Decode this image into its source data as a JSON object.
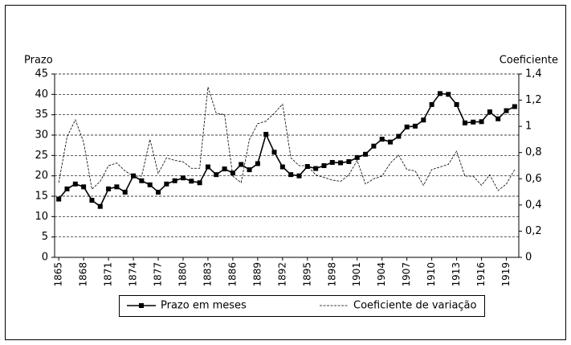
{
  "chart_data": {
    "type": "line",
    "y_label": "Prazo",
    "y2_label": "Coeficiente",
    "x": [
      1865,
      1866,
      1867,
      1868,
      1869,
      1870,
      1871,
      1872,
      1873,
      1874,
      1875,
      1876,
      1877,
      1878,
      1879,
      1880,
      1881,
      1882,
      1883,
      1884,
      1885,
      1886,
      1887,
      1888,
      1889,
      1890,
      1891,
      1892,
      1893,
      1894,
      1895,
      1896,
      1897,
      1898,
      1899,
      1900,
      1901,
      1902,
      1903,
      1904,
      1905,
      1906,
      1907,
      1908,
      1909,
      1910,
      1911,
      1912,
      1913,
      1914,
      1915,
      1916,
      1917,
      1918,
      1919,
      1920
    ],
    "series": [
      {
        "name": "Prazo em meses",
        "color": "#000000",
        "line_style": "solid",
        "marker": "square",
        "values": [
          14.3,
          16.8,
          18.0,
          17.3,
          14.0,
          12.5,
          16.8,
          17.3,
          16.0,
          20.0,
          18.8,
          17.8,
          16.0,
          18.0,
          18.8,
          19.5,
          18.7,
          18.3,
          22.2,
          20.3,
          21.7,
          20.7,
          22.8,
          21.5,
          23.0,
          30.2,
          25.8,
          22.2,
          20.3,
          20.0,
          22.3,
          21.8,
          22.5,
          23.3,
          23.2,
          23.5,
          24.5,
          25.3,
          27.3,
          29.0,
          28.3,
          29.7,
          32.0,
          32.2,
          33.7,
          37.5,
          40.2,
          40.0,
          37.5,
          33.0,
          33.2,
          33.3,
          35.7,
          34.0,
          36.0,
          37.0
        ]
      },
      {
        "name": "Coeficiente de variação",
        "color": "#000000",
        "line_style": "dashed",
        "marker": "none",
        "axis": "y2",
        "values": [
          0.57,
          0.92,
          1.05,
          0.88,
          0.52,
          0.58,
          0.7,
          0.72,
          0.66,
          0.62,
          0.62,
          0.9,
          0.64,
          0.76,
          0.74,
          0.73,
          0.68,
          0.68,
          1.3,
          1.1,
          1.09,
          0.62,
          0.57,
          0.9,
          1.02,
          1.04,
          1.1,
          1.17,
          0.76,
          0.7,
          0.7,
          0.63,
          0.61,
          0.59,
          0.58,
          0.63,
          0.74,
          0.56,
          0.6,
          0.62,
          0.72,
          0.78,
          0.67,
          0.66,
          0.55,
          0.67,
          0.69,
          0.71,
          0.81,
          0.62,
          0.62,
          0.55,
          0.63,
          0.51,
          0.56,
          0.67
        ]
      }
    ],
    "xlim": [
      1864.5,
      1920.5
    ],
    "xticks": [
      1865,
      1868,
      1871,
      1874,
      1877,
      1880,
      1883,
      1886,
      1889,
      1892,
      1895,
      1898,
      1901,
      1904,
      1907,
      1910,
      1913,
      1916,
      1919
    ],
    "ylim": [
      0,
      45
    ],
    "yticks": [
      0,
      5,
      10,
      15,
      20,
      25,
      30,
      35,
      40,
      45
    ],
    "y2lim": [
      0,
      1.4
    ],
    "y2ticks": [
      0,
      {
        "value": 0.2,
        "label": "0,2"
      },
      {
        "value": 0.4,
        "label": "0,4"
      },
      {
        "value": 0.6,
        "label": "0,6"
      },
      {
        "value": 0.8,
        "label": "0,8"
      },
      1,
      {
        "value": 1.2,
        "label": "1,2"
      },
      {
        "value": 1.4,
        "label": "1,4"
      }
    ],
    "grid": true,
    "legend": "bottom"
  }
}
